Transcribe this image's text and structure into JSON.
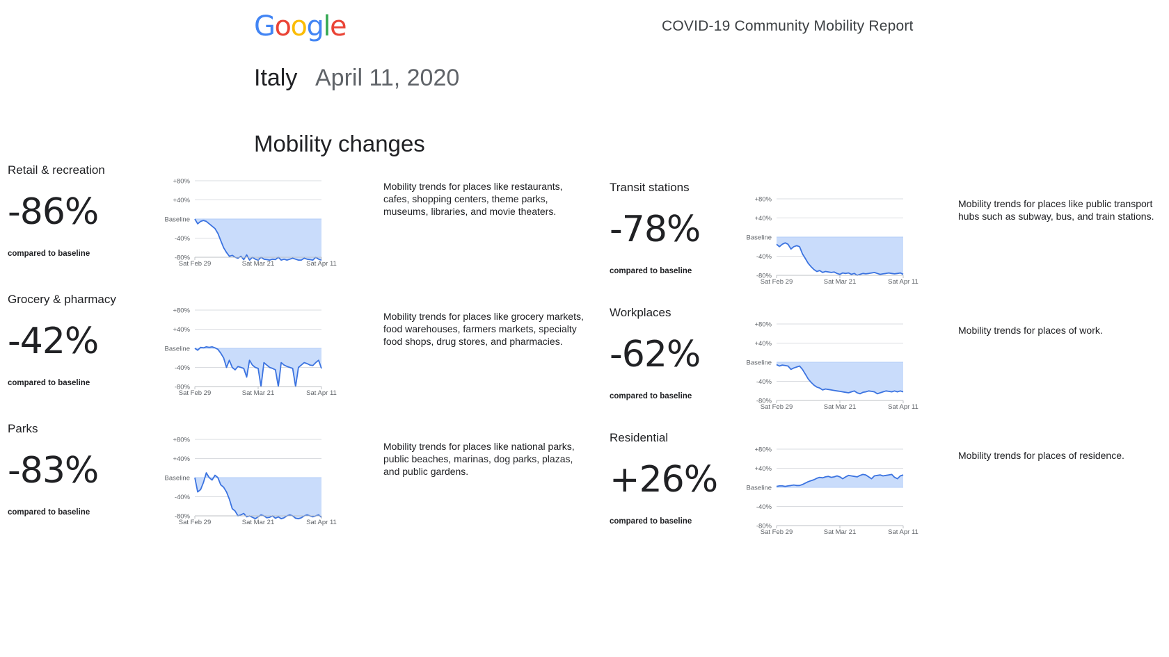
{
  "header": {
    "logo_letters": [
      {
        "char": "G",
        "color": "#4285F4"
      },
      {
        "char": "o",
        "color": "#EA4335"
      },
      {
        "char": "o",
        "color": "#FBBC05"
      },
      {
        "char": "g",
        "color": "#4285F4"
      },
      {
        "char": "l",
        "color": "#34A853"
      },
      {
        "char": "e",
        "color": "#EA4335"
      }
    ],
    "report_title": "COVID-19 Community Mobility Report",
    "country": "Italy",
    "date": "April 11, 2020",
    "section_title": "Mobility changes"
  },
  "colors": {
    "line": "#3b73e0",
    "fill": "#c9dcfb",
    "axis": "#dadce0",
    "text": "#202124"
  },
  "categories": [
    {
      "name": "Retail & recreation",
      "value": "-86%",
      "caption": "compared to baseline",
      "description": "Mobility trends for places like restaurants, cafes, shopping centers, theme parks, museums, libraries, and movie theaters."
    },
    {
      "name": "Grocery & pharmacy",
      "value": "-42%",
      "caption": "compared to baseline",
      "description": "Mobility trends for places like grocery markets, food warehouses, farmers markets, specialty food shops, drug stores, and pharmacies."
    },
    {
      "name": "Parks",
      "value": "-83%",
      "caption": "compared to baseline",
      "description": "Mobility trends for places like national parks, public beaches, marinas, dog parks, plazas, and public gardens."
    },
    {
      "name": "Transit stations",
      "value": "-78%",
      "caption": "compared to baseline",
      "description": "Mobility trends for places like public transport hubs such as subway, bus, and train stations."
    },
    {
      "name": "Workplaces",
      "value": "-62%",
      "caption": "compared to baseline",
      "description": "Mobility trends for places of work."
    },
    {
      "name": "Residential",
      "value": "+26%",
      "caption": "compared to baseline",
      "description": "Mobility trends for places of residence."
    }
  ],
  "chart_data": [
    {
      "type": "area",
      "series": [
        {
          "values": [
            0,
            -10,
            -5,
            -3,
            -5,
            -10,
            -15,
            -20,
            -30,
            -45,
            -60,
            -70,
            -78,
            -76,
            -80,
            -82,
            -78,
            -85,
            -75,
            -86,
            -80,
            -84,
            -86,
            -80,
            -84,
            -85,
            -86,
            -84,
            -85,
            -80,
            -86,
            -84,
            -86,
            -84,
            -82,
            -84,
            -86,
            -86,
            -82,
            -84,
            -85,
            -86,
            -80,
            -84,
            -86
          ]
        }
      ],
      "x_tick_labels": [
        "Sat Feb 29",
        "Sat Mar 21",
        "Sat Apr 11"
      ],
      "y_tick_labels": [
        "+80%",
        "+40%",
        "Baseline",
        "-40%",
        "-80%"
      ],
      "ylim": [
        -80,
        80
      ]
    },
    {
      "type": "area",
      "series": [
        {
          "values": [
            0,
            -4,
            2,
            1,
            3,
            2,
            3,
            1,
            -2,
            -10,
            -20,
            -40,
            -25,
            -40,
            -45,
            -38,
            -40,
            -42,
            -60,
            -25,
            -35,
            -40,
            -42,
            -80,
            -30,
            -35,
            -40,
            -42,
            -45,
            -80,
            -30,
            -35,
            -38,
            -40,
            -42,
            -80,
            -40,
            -35,
            -30,
            -32,
            -35,
            -36,
            -30,
            -25,
            -42
          ]
        }
      ],
      "x_tick_labels": [
        "Sat Feb 29",
        "Sat Mar 21",
        "Sat Apr 11"
      ],
      "y_tick_labels": [
        "+80%",
        "+40%",
        "Baseline",
        "-40%",
        "-80%"
      ],
      "ylim": [
        -80,
        80
      ]
    },
    {
      "type": "area",
      "series": [
        {
          "values": [
            0,
            -30,
            -25,
            -10,
            10,
            0,
            -5,
            5,
            0,
            -15,
            -20,
            -30,
            -45,
            -65,
            -70,
            -80,
            -78,
            -75,
            -82,
            -80,
            -83,
            -86,
            -82,
            -78,
            -80,
            -84,
            -83,
            -80,
            -85,
            -82,
            -86,
            -84,
            -80,
            -78,
            -80,
            -85,
            -86,
            -84,
            -80,
            -78,
            -80,
            -82,
            -80,
            -78,
            -83
          ]
        }
      ],
      "x_tick_labels": [
        "Sat Feb 29",
        "Sat Mar 21",
        "Sat Apr 11"
      ],
      "y_tick_labels": [
        "+80%",
        "+40%",
        "Baseline",
        "-40%",
        "-80%"
      ],
      "ylim": [
        -80,
        80
      ]
    },
    {
      "type": "area",
      "series": [
        {
          "values": [
            -15,
            -20,
            -15,
            -12,
            -15,
            -25,
            -20,
            -18,
            -20,
            -35,
            -45,
            -55,
            -62,
            -68,
            -72,
            -70,
            -74,
            -72,
            -73,
            -74,
            -73,
            -76,
            -78,
            -75,
            -76,
            -75,
            -78,
            -76,
            -80,
            -78,
            -76,
            -77,
            -76,
            -75,
            -74,
            -76,
            -78,
            -77,
            -76,
            -75,
            -76,
            -77,
            -76,
            -75,
            -78
          ]
        }
      ],
      "x_tick_labels": [
        "Sat Feb 29",
        "Sat Mar 21",
        "Sat Apr 11"
      ],
      "y_tick_labels": [
        "+80%",
        "+40%",
        "Baseline",
        "-40%",
        "-80%"
      ],
      "ylim": [
        -80,
        80
      ]
    },
    {
      "type": "area",
      "series": [
        {
          "values": [
            -5,
            -8,
            -6,
            -7,
            -8,
            -15,
            -12,
            -10,
            -8,
            -15,
            -25,
            -35,
            -42,
            -48,
            -52,
            -54,
            -58,
            -56,
            -57,
            -58,
            -59,
            -60,
            -61,
            -62,
            -63,
            -64,
            -62,
            -60,
            -64,
            -66,
            -63,
            -62,
            -60,
            -61,
            -62,
            -66,
            -64,
            -62,
            -60,
            -61,
            -62,
            -60,
            -62,
            -60,
            -62
          ]
        }
      ],
      "x_tick_labels": [
        "Sat Feb 29",
        "Sat Mar 21",
        "Sat Apr 11"
      ],
      "y_tick_labels": [
        "+80%",
        "+40%",
        "Baseline",
        "-40%",
        "-80%"
      ],
      "ylim": [
        -80,
        80
      ]
    },
    {
      "type": "area",
      "series": [
        {
          "values": [
            2,
            3,
            3,
            2,
            3,
            4,
            5,
            4,
            4,
            6,
            9,
            12,
            14,
            16,
            19,
            21,
            20,
            22,
            23,
            21,
            22,
            24,
            22,
            18,
            22,
            25,
            24,
            23,
            22,
            25,
            27,
            26,
            22,
            18,
            24,
            25,
            26,
            24,
            25,
            26,
            27,
            21,
            18,
            24,
            26
          ]
        }
      ],
      "x_tick_labels": [
        "Sat Feb 29",
        "Sat Mar 21",
        "Sat Apr 11"
      ],
      "y_tick_labels": [
        "+80%",
        "+40%",
        "Baseline",
        "-40%",
        "-80%"
      ],
      "ylim": [
        -80,
        80
      ]
    }
  ]
}
